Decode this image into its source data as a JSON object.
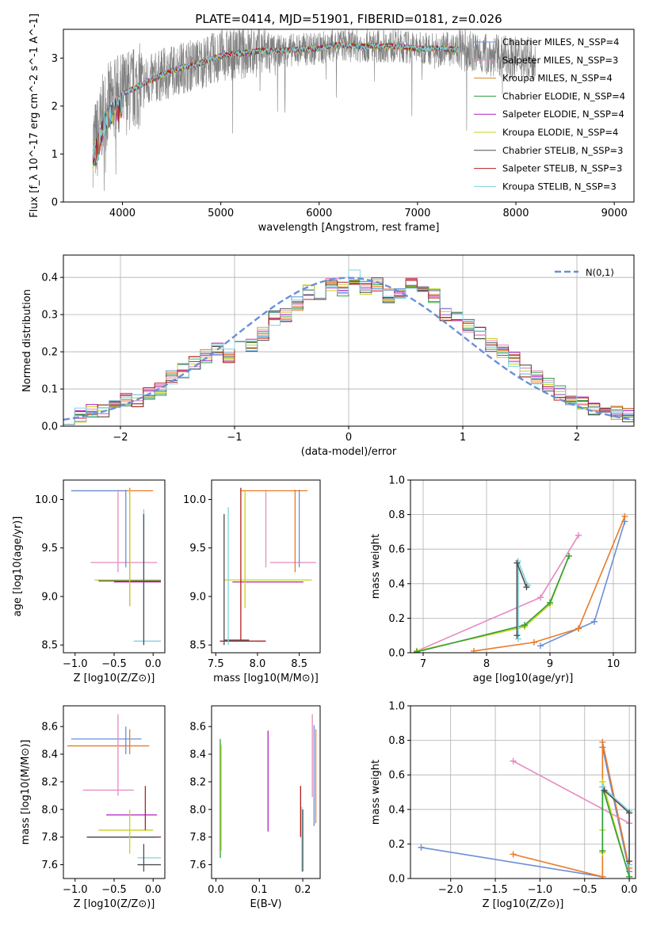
{
  "title": "PLATE=0414, MJD=51901, FIBERID=0181, z=0.026",
  "colors": {
    "c1": "#6a8fd8",
    "c2": "#e87b28",
    "c3": "#2f9e3a",
    "c4": "#b21fbf",
    "c5": "#c8d21c",
    "c6": "#e58ac1",
    "c7": "#4e4e4e",
    "c8": "#b22020",
    "c9": "#7fd3df",
    "c10": "#d4822a",
    "c11": "#808080"
  },
  "chart_data": [
    {
      "id": "spectrum",
      "type": "line",
      "xlabel": "wavelength [Angstrom, rest frame]",
      "ylabel": "Flux [f_λ 10^-17 erg cm^-2 s^-1 A^-1]",
      "xlim": [
        3400,
        9200
      ],
      "ylim": [
        0,
        3.6
      ],
      "xticks": [
        4000,
        5000,
        6000,
        7000,
        8000,
        9000
      ],
      "yticks": [
        0,
        1,
        2,
        3
      ],
      "series_names": [
        "Chabrier MILES, N_SSP=4",
        "Salpeter MILES, N_SSP=3",
        "Kroupa MILES, N_SSP=4",
        "Chabrier ELODIE, N_SSP=4",
        "Salpeter ELODIE, N_SSP=4",
        "Kroupa ELODIE, N_SSP=4",
        "Chabrier STELIB, N_SSP=3",
        "Salpeter STELIB, N_SSP=3",
        "Kroupa STELIB, N_SSP=3"
      ],
      "continuum": {
        "x": [
          3700,
          3750,
          3800,
          3850,
          3900,
          3950,
          4000,
          4100,
          4200,
          4400,
          4600,
          4800,
          5000,
          5200,
          5400,
          5600,
          5800,
          6000,
          6200,
          6400,
          6600,
          6800,
          7000,
          7200,
          7400,
          7600,
          7800,
          8000,
          8200
        ],
        "y": [
          1.2,
          1.35,
          1.8,
          2.0,
          2.1,
          2.2,
          2.25,
          2.35,
          2.45,
          2.65,
          2.8,
          2.9,
          3.05,
          3.1,
          3.15,
          3.15,
          3.18,
          3.2,
          3.28,
          3.25,
          3.25,
          3.25,
          3.2,
          3.2,
          3.18,
          3.1,
          3.05,
          3.0,
          3.0
        ]
      }
    },
    {
      "id": "residuals",
      "type": "histogram",
      "xlabel": "(data-model)/error",
      "ylabel": "Normed distribution",
      "xlim": [
        -2.5,
        2.5
      ],
      "ylim": [
        0,
        0.46
      ],
      "xticks": [
        -2,
        -1,
        0,
        1,
        2
      ],
      "yticks": [
        0.0,
        0.1,
        0.2,
        0.3,
        0.4
      ],
      "legend": "N(0,1)",
      "bins": [
        -2.5,
        -2.4,
        -2.3,
        -2.2,
        -2.1,
        -2.0,
        -1.9,
        -1.8,
        -1.7,
        -1.6,
        -1.5,
        -1.4,
        -1.3,
        -1.2,
        -1.1,
        -1.0,
        -0.9,
        -0.8,
        -0.7,
        -0.6,
        -0.5,
        -0.4,
        -0.3,
        -0.2,
        -0.1,
        0.0,
        0.1,
        0.2,
        0.3,
        0.4,
        0.5,
        0.6,
        0.7,
        0.8,
        0.9,
        1.0,
        1.1,
        1.2,
        1.3,
        1.4,
        1.5,
        1.6,
        1.7,
        1.8,
        1.9,
        2.0,
        2.1,
        2.2,
        2.3,
        2.4
      ],
      "values": [
        0.025,
        0.03,
        0.04,
        0.045,
        0.05,
        0.07,
        0.07,
        0.09,
        0.1,
        0.13,
        0.15,
        0.17,
        0.19,
        0.21,
        0.19,
        0.23,
        0.22,
        0.25,
        0.29,
        0.3,
        0.33,
        0.36,
        0.35,
        0.38,
        0.37,
        0.4,
        0.37,
        0.38,
        0.35,
        0.36,
        0.39,
        0.37,
        0.35,
        0.3,
        0.29,
        0.27,
        0.25,
        0.22,
        0.2,
        0.18,
        0.15,
        0.13,
        0.11,
        0.09,
        0.07,
        0.06,
        0.05,
        0.04,
        0.035,
        0.03
      ]
    },
    {
      "id": "z-age",
      "type": "errorbar",
      "xlabel": "Z [log10(Z/Z⊙)]",
      "ylabel": "age [log10(age/yr)]",
      "xlim": [
        -1.15,
        0.15
      ],
      "ylim": [
        8.42,
        10.2
      ],
      "xticks": [
        -1.0,
        -0.5,
        0.0
      ],
      "xticklabels": [
        "−1.0",
        "−0.5",
        "0.0"
      ],
      "yticks": [
        8.5,
        9.0,
        9.5,
        10.0
      ],
      "h": [
        {
          "x1": -1.05,
          "x2": 0.0,
          "y": 10.09,
          "c": "c2"
        },
        {
          "x1": -1.05,
          "x2": -0.35,
          "y": 10.09,
          "c": "c1"
        },
        {
          "x1": -0.8,
          "x2": 0.05,
          "y": 9.35,
          "c": "c6"
        },
        {
          "x1": -0.75,
          "x2": 0.1,
          "y": 9.17,
          "c": "c5"
        },
        {
          "x1": -0.7,
          "x2": 0.1,
          "y": 9.16,
          "c": "c7"
        },
        {
          "x1": -0.5,
          "x2": 0.1,
          "y": 9.15,
          "c": "c4"
        },
        {
          "x1": -0.25,
          "x2": 0.1,
          "y": 8.54,
          "c": "c9"
        }
      ],
      "v": [
        {
          "x": -0.45,
          "y1": 9.25,
          "y2": 10.1,
          "c": "c6"
        },
        {
          "x": -0.35,
          "y1": 9.3,
          "y2": 10.1,
          "c": "c1"
        },
        {
          "x": -0.3,
          "y1": 8.9,
          "y2": 10.12,
          "c": "c2"
        },
        {
          "x": -0.3,
          "y1": 8.9,
          "y2": 10.1,
          "c": "c5"
        },
        {
          "x": -0.12,
          "y1": 8.5,
          "y2": 9.9,
          "c": "c9"
        },
        {
          "x": -0.12,
          "y1": 8.5,
          "y2": 9.85,
          "c": "c7"
        }
      ]
    },
    {
      "id": "mass-age",
      "type": "errorbar",
      "xlabel": "mass [log10(M/M⊙)]",
      "ylabel": "",
      "xlim": [
        7.45,
        8.75
      ],
      "ylim": [
        8.42,
        10.2
      ],
      "xticks": [
        7.5,
        8.0,
        8.5
      ],
      "yticks": [
        8.5,
        9.0,
        9.5,
        10.0
      ],
      "h": [
        {
          "x1": 8.15,
          "x2": 8.7,
          "y": 9.35,
          "c": "c6"
        },
        {
          "x1": 7.6,
          "x2": 8.65,
          "y": 9.17,
          "c": "c5"
        },
        {
          "x1": 7.7,
          "x2": 8.55,
          "y": 9.15,
          "c": "c4"
        },
        {
          "x1": 7.55,
          "x2": 8.1,
          "y": 8.54,
          "c": "c8"
        },
        {
          "x1": 7.8,
          "x2": 8.6,
          "y": 10.09,
          "c": "c2"
        },
        {
          "x1": 7.6,
          "x2": 7.9,
          "y": 8.55,
          "c": "c7"
        }
      ],
      "v": [
        {
          "x": 7.6,
          "y1": 8.5,
          "y2": 9.85,
          "c": "c7"
        },
        {
          "x": 7.65,
          "y1": 8.5,
          "y2": 9.92,
          "c": "c9"
        },
        {
          "x": 7.8,
          "y1": 8.55,
          "y2": 10.12,
          "c": "c8"
        },
        {
          "x": 7.85,
          "y1": 8.88,
          "y2": 10.1,
          "c": "c5"
        },
        {
          "x": 8.1,
          "y1": 9.3,
          "y2": 10.1,
          "c": "c6"
        },
        {
          "x": 8.45,
          "y1": 9.25,
          "y2": 10.1,
          "c": "c2"
        },
        {
          "x": 8.5,
          "y1": 9.3,
          "y2": 10.1,
          "c": "c1"
        }
      ]
    },
    {
      "id": "age-weight",
      "type": "line",
      "xlabel": "age [log10(age/yr)]",
      "ylabel": "mass weight",
      "xlim": [
        6.8,
        10.35
      ],
      "ylim": [
        0,
        1.0
      ],
      "xticks": [
        7,
        8,
        9,
        10
      ],
      "yticks": [
        0.0,
        0.2,
        0.4,
        0.6,
        0.8,
        1.0
      ],
      "lines": [
        {
          "c": "c1",
          "x": [
            8.85,
            9.45,
            9.7,
            10.18
          ],
          "y": [
            0.04,
            0.14,
            0.18,
            0.76
          ]
        },
        {
          "c": "c2",
          "x": [
            7.8,
            8.75,
            9.45,
            10.18
          ],
          "y": [
            0.01,
            0.06,
            0.14,
            0.79
          ]
        },
        {
          "c": "c6",
          "x": [
            6.9,
            8.85,
            9.45
          ],
          "y": [
            0.01,
            0.32,
            0.68
          ]
        },
        {
          "c": "c5",
          "x": [
            6.9,
            8.6,
            9.0,
            9.3
          ],
          "y": [
            0.01,
            0.15,
            0.28,
            0.56
          ]
        },
        {
          "c": "c3",
          "x": [
            6.9,
            8.6,
            9.0,
            9.3
          ],
          "y": [
            0.005,
            0.16,
            0.29,
            0.56
          ]
        },
        {
          "c": "c9",
          "x": [
            8.5,
            8.5,
            8.65
          ],
          "y": [
            0.08,
            0.53,
            0.39
          ]
        },
        {
          "c": "c7",
          "x": [
            8.48,
            8.48,
            8.63
          ],
          "y": [
            0.1,
            0.52,
            0.38
          ]
        }
      ]
    },
    {
      "id": "z-mass",
      "type": "errorbar",
      "xlabel": "Z [log10(Z/Z⊙)]",
      "ylabel": "mass [log10(M/M⊙)]",
      "xlim": [
        -1.15,
        0.15
      ],
      "ylim": [
        7.5,
        8.75
      ],
      "xticks": [
        -1.0,
        -0.5,
        0.0
      ],
      "xticklabels": [
        "−1.0",
        "−0.5",
        "0.0"
      ],
      "yticks": [
        7.6,
        7.8,
        8.0,
        8.2,
        8.4,
        8.6
      ],
      "h": [
        {
          "x1": -1.05,
          "x2": -0.15,
          "y": 8.51,
          "c": "c1"
        },
        {
          "x1": -1.1,
          "x2": -0.05,
          "y": 8.46,
          "c": "c2"
        },
        {
          "x1": -0.9,
          "x2": -0.25,
          "y": 8.14,
          "c": "c6"
        },
        {
          "x1": -0.6,
          "x2": 0.05,
          "y": 7.96,
          "c": "c4"
        },
        {
          "x1": -0.7,
          "x2": 0.0,
          "y": 7.85,
          "c": "c5"
        },
        {
          "x1": -0.85,
          "x2": 0.1,
          "y": 7.8,
          "c": "c8"
        },
        {
          "x1": -0.85,
          "x2": 0.05,
          "y": 7.8,
          "c": "c7"
        },
        {
          "x1": -0.2,
          "x2": 0.1,
          "y": 7.65,
          "c": "c9"
        },
        {
          "x1": -0.2,
          "x2": 0.1,
          "y": 7.6,
          "c": "c7"
        }
      ],
      "v": [
        {
          "x": -0.45,
          "y1": 8.1,
          "y2": 8.69,
          "c": "c6"
        },
        {
          "x": -0.35,
          "y1": 8.4,
          "y2": 8.6,
          "c": "c1"
        },
        {
          "x": -0.3,
          "y1": 8.4,
          "y2": 8.58,
          "c": "c2"
        },
        {
          "x": -0.3,
          "y1": 7.68,
          "y2": 8.0,
          "c": "c5"
        },
        {
          "x": -0.1,
          "y1": 7.85,
          "y2": 8.17,
          "c": "c8"
        },
        {
          "x": -0.12,
          "y1": 7.55,
          "y2": 7.75,
          "c": "c7"
        }
      ]
    },
    {
      "id": "ebv-mass",
      "type": "errorbar",
      "xlabel": "E(B-V)",
      "ylabel": "",
      "xlim": [
        -0.01,
        0.24
      ],
      "ylim": [
        7.5,
        8.75
      ],
      "xticks": [
        0.0,
        0.1,
        0.2
      ],
      "yticks": [
        7.6,
        7.8,
        8.0,
        8.2,
        8.4,
        8.6
      ],
      "v": [
        {
          "x": 0.01,
          "y1": 7.65,
          "y2": 8.51,
          "c": "c3"
        },
        {
          "x": 0.012,
          "y1": 7.7,
          "y2": 8.47,
          "c": "c5"
        },
        {
          "x": 0.12,
          "y1": 7.84,
          "y2": 8.57,
          "c": "c4"
        },
        {
          "x": 0.195,
          "y1": 7.8,
          "y2": 8.17,
          "c": "c8"
        },
        {
          "x": 0.198,
          "y1": 7.55,
          "y2": 8.02,
          "c": "c9"
        },
        {
          "x": 0.2,
          "y1": 7.55,
          "y2": 8.0,
          "c": "c7"
        },
        {
          "x": 0.222,
          "y1": 8.09,
          "y2": 8.69,
          "c": "c6"
        },
        {
          "x": 0.226,
          "y1": 7.88,
          "y2": 8.61,
          "c": "c1"
        },
        {
          "x": 0.23,
          "y1": 7.9,
          "y2": 8.58,
          "c": "c2"
        }
      ]
    },
    {
      "id": "z-weight",
      "type": "line",
      "xlabel": "Z [log10(Z/Z⊙)]",
      "ylabel": "mass weight",
      "xlim": [
        -2.45,
        0.07
      ],
      "ylim": [
        0,
        1.0
      ],
      "xticks": [
        -2.0,
        -1.5,
        -1.0,
        -0.5,
        0.0
      ],
      "xticklabels": [
        "−2.0",
        "−1.5",
        "−1.0",
        "−0.5",
        "0.0"
      ],
      "yticks": [
        0.0,
        0.2,
        0.4,
        0.6,
        0.8,
        1.0
      ],
      "lines": [
        {
          "c": "c1",
          "x": [
            -2.33,
            -0.3,
            -0.3,
            0.0
          ],
          "y": [
            0.18,
            0.01,
            0.76,
            0.04
          ]
        },
        {
          "c": "c2",
          "x": [
            -1.3,
            -0.3,
            -0.3,
            0.0
          ],
          "y": [
            0.14,
            0.01,
            0.79,
            0.06
          ]
        },
        {
          "c": "c6",
          "x": [
            -1.3,
            0.0
          ],
          "y": [
            0.68,
            0.32
          ]
        },
        {
          "c": "c5",
          "x": [
            -0.3,
            -0.3,
            -0.3,
            0.0,
            0.0
          ],
          "y": [
            0.15,
            0.28,
            0.56,
            0.01,
            0.01
          ]
        },
        {
          "c": "c3",
          "x": [
            -0.3,
            -0.3,
            0.0
          ],
          "y": [
            0.16,
            0.53,
            0.01
          ]
        },
        {
          "c": "c9",
          "x": [
            -0.3,
            0.0,
            0.0
          ],
          "y": [
            0.53,
            0.39,
            0.08
          ]
        },
        {
          "c": "c7",
          "x": [
            -0.28,
            0.0,
            0.0
          ],
          "y": [
            0.51,
            0.38,
            0.1
          ]
        }
      ]
    }
  ]
}
